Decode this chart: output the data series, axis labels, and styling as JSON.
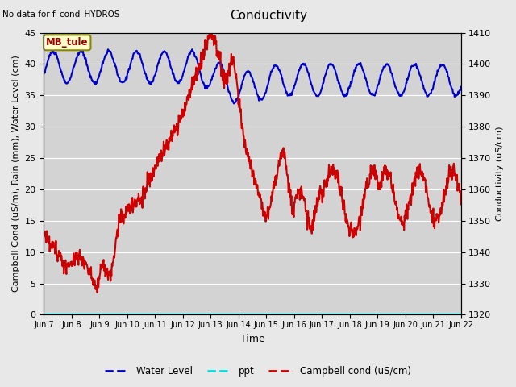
{
  "title": "Conductivity",
  "top_left_text": "No data for f_cond_HYDROS",
  "ylabel_left": "Campbell Cond (uS/m), Rain (mm), Water Level (cm)",
  "ylabel_right": "Conductivity (uS/cm)",
  "xlabel": "Time",
  "ylim_left": [
    0,
    45
  ],
  "ylim_right": [
    1320,
    1410
  ],
  "fig_bg": "#e8e8e8",
  "plot_bg": "#d3d3d3",
  "annotation_text": "MB_tule",
  "xtick_labels": [
    "Jun 7",
    "Jun 8",
    "Jun 9",
    "Jun 10",
    "Jun 11",
    "Jun 12",
    "Jun 13",
    "Jun 14",
    "Jun 15",
    "Jun 16",
    "Jun 17",
    "Jun 18",
    "Jun 19",
    "Jun 20",
    "Jun 21",
    "Jun 22"
  ],
  "yticks_left": [
    0,
    5,
    10,
    15,
    20,
    25,
    30,
    35,
    40,
    45
  ],
  "yticks_right": [
    1320,
    1330,
    1340,
    1350,
    1360,
    1370,
    1380,
    1390,
    1400,
    1410
  ],
  "legend_labels": [
    "Water Level",
    "ppt",
    "Campbell cond (uS/cm)"
  ],
  "wl_color": "#0000cc",
  "ppt_color": "#00dddd",
  "cc_color": "#cc0000",
  "grid_color": "#ffffff",
  "title_fontsize": 11,
  "label_fontsize": 8,
  "tick_fontsize": 8
}
